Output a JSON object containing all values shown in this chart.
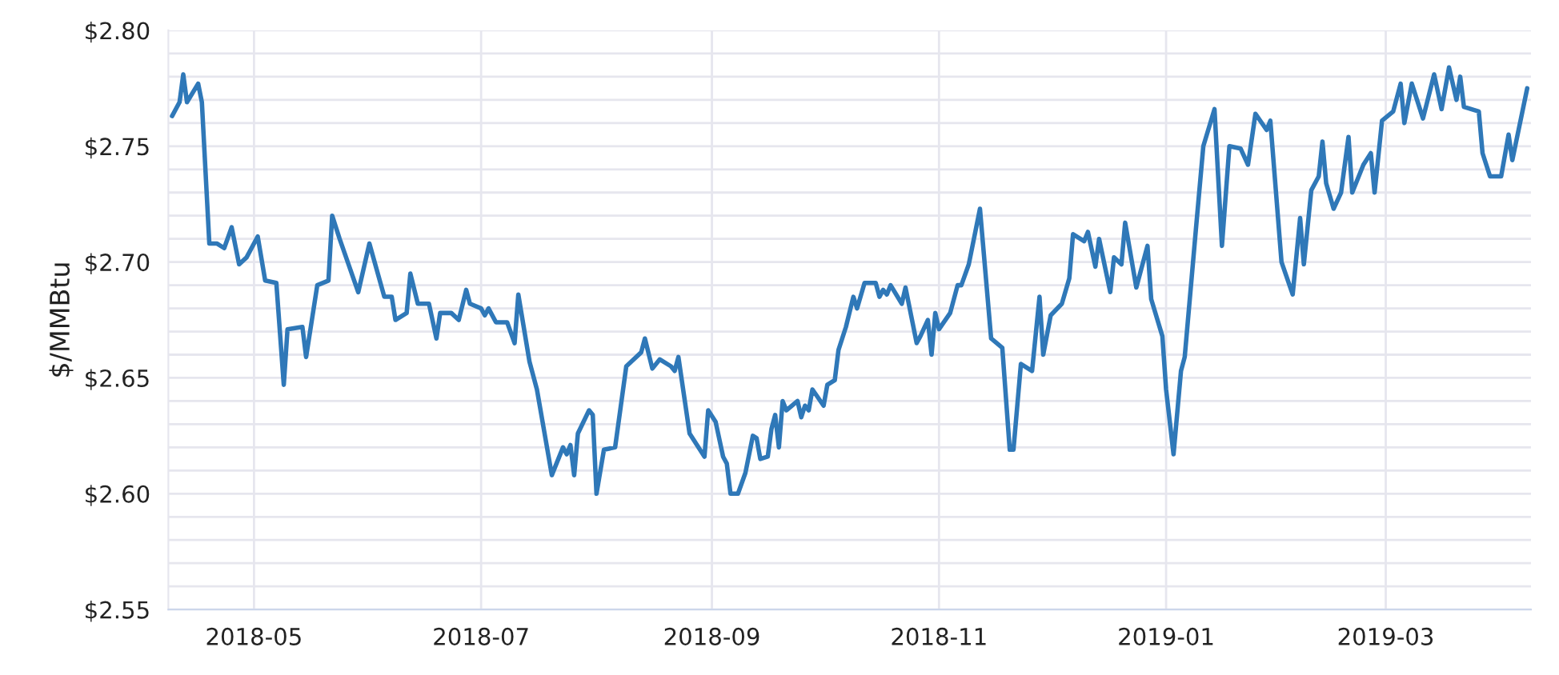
{
  "chart_data": {
    "type": "line",
    "ylabel": "$/MMBtu",
    "x": [
      "2018-04-09",
      "2018-04-11",
      "2018-04-12",
      "2018-04-13",
      "2018-04-16",
      "2018-04-17",
      "2018-04-19",
      "2018-04-21",
      "2018-04-23",
      "2018-04-25",
      "2018-04-27",
      "2018-04-29",
      "2018-05-02",
      "2018-05-04",
      "2018-05-07",
      "2018-05-09",
      "2018-05-10",
      "2018-05-14",
      "2018-05-15",
      "2018-05-18",
      "2018-05-21",
      "2018-05-22",
      "2018-05-24",
      "2018-05-29",
      "2018-06-01",
      "2018-06-05",
      "2018-06-07",
      "2018-06-08",
      "2018-06-11",
      "2018-06-12",
      "2018-06-14",
      "2018-06-17",
      "2018-06-19",
      "2018-06-20",
      "2018-06-23",
      "2018-06-25",
      "2018-06-27",
      "2018-06-28",
      "2018-07-01",
      "2018-07-02",
      "2018-07-03",
      "2018-07-05",
      "2018-07-08",
      "2018-07-10",
      "2018-07-11",
      "2018-07-14",
      "2018-07-16",
      "2018-07-20",
      "2018-07-23",
      "2018-07-24",
      "2018-07-25",
      "2018-07-26",
      "2018-07-27",
      "2018-07-30",
      "2018-07-31",
      "2018-08-01",
      "2018-08-03",
      "2018-08-06",
      "2018-08-09",
      "2018-08-13",
      "2018-08-14",
      "2018-08-16",
      "2018-08-18",
      "2018-08-21",
      "2018-08-22",
      "2018-08-23",
      "2018-08-26",
      "2018-08-28",
      "2018-08-30",
      "2018-08-31",
      "2018-09-02",
      "2018-09-04",
      "2018-09-05",
      "2018-09-06",
      "2018-09-08",
      "2018-09-10",
      "2018-09-12",
      "2018-09-13",
      "2018-09-14",
      "2018-09-16",
      "2018-09-17",
      "2018-09-18",
      "2018-09-19",
      "2018-09-20",
      "2018-09-21",
      "2018-09-24",
      "2018-09-25",
      "2018-09-26",
      "2018-09-27",
      "2018-09-28",
      "2018-10-01",
      "2018-10-02",
      "2018-10-04",
      "2018-10-05",
      "2018-10-07",
      "2018-10-09",
      "2018-10-10",
      "2018-10-12",
      "2018-10-15",
      "2018-10-16",
      "2018-10-17",
      "2018-10-18",
      "2018-10-19",
      "2018-10-22",
      "2018-10-23",
      "2018-10-26",
      "2018-10-27",
      "2018-10-29",
      "2018-10-30",
      "2018-10-31",
      "2018-11-01",
      "2018-11-04",
      "2018-11-06",
      "2018-11-07",
      "2018-11-09",
      "2018-11-12",
      "2018-11-15",
      "2018-11-18",
      "2018-11-20",
      "2018-11-21",
      "2018-11-23",
      "2018-11-26",
      "2018-11-28",
      "2018-11-29",
      "2018-12-01",
      "2018-12-04",
      "2018-12-06",
      "2018-12-07",
      "2018-12-10",
      "2018-12-11",
      "2018-12-13",
      "2018-12-14",
      "2018-12-17",
      "2018-12-18",
      "2018-12-20",
      "2018-12-21",
      "2018-12-24",
      "2018-12-27",
      "2018-12-28",
      "2018-12-31",
      "2019-01-01",
      "2019-01-03",
      "2019-01-05",
      "2019-01-06",
      "2019-01-09",
      "2019-01-11",
      "2019-01-14",
      "2019-01-16",
      "2019-01-18",
      "2019-01-21",
      "2019-01-23",
      "2019-01-25",
      "2019-01-28",
      "2019-01-29",
      "2019-02-01",
      "2019-02-04",
      "2019-02-06",
      "2019-02-07",
      "2019-02-09",
      "2019-02-11",
      "2019-02-12",
      "2019-02-13",
      "2019-02-15",
      "2019-02-17",
      "2019-02-19",
      "2019-02-20",
      "2019-02-23",
      "2019-02-25",
      "2019-02-26",
      "2019-02-28",
      "2019-03-03",
      "2019-03-05",
      "2019-03-06",
      "2019-03-08",
      "2019-03-11",
      "2019-03-14",
      "2019-03-16",
      "2019-03-18",
      "2019-03-20",
      "2019-03-21",
      "2019-03-22",
      "2019-03-26",
      "2019-03-27",
      "2019-03-29",
      "2019-04-01",
      "2019-04-03",
      "2019-04-04",
      "2019-04-08"
    ],
    "series": [
      {
        "color": "#2f78b8",
        "values": [
          2.763,
          2.769,
          2.781,
          2.769,
          2.777,
          2.769,
          2.708,
          2.708,
          2.706,
          2.715,
          2.699,
          2.702,
          2.711,
          2.692,
          2.691,
          2.647,
          2.671,
          2.672,
          2.659,
          2.69,
          2.692,
          2.72,
          2.71,
          2.687,
          2.708,
          2.685,
          2.685,
          2.675,
          2.678,
          2.695,
          2.682,
          2.682,
          2.667,
          2.678,
          2.678,
          2.675,
          2.688,
          2.682,
          2.68,
          2.677,
          2.68,
          2.674,
          2.674,
          2.665,
          2.686,
          2.657,
          2.645,
          2.608,
          2.62,
          2.617,
          2.621,
          2.608,
          2.626,
          2.636,
          2.634,
          2.6,
          2.619,
          2.62,
          2.655,
          2.661,
          2.667,
          2.654,
          2.658,
          2.655,
          2.653,
          2.659,
          2.626,
          2.621,
          2.616,
          2.636,
          2.631,
          2.616,
          2.613,
          2.6,
          2.6,
          2.609,
          2.625,
          2.624,
          2.615,
          2.616,
          2.628,
          2.634,
          2.62,
          2.64,
          2.636,
          2.64,
          2.633,
          2.638,
          2.636,
          2.645,
          2.638,
          2.647,
          2.649,
          2.662,
          2.672,
          2.685,
          2.68,
          2.691,
          2.691,
          2.685,
          2.688,
          2.686,
          2.69,
          2.682,
          2.689,
          2.665,
          2.668,
          2.675,
          2.66,
          2.678,
          2.671,
          2.678,
          2.69,
          2.69,
          2.699,
          2.723,
          2.667,
          2.663,
          2.619,
          2.619,
          2.656,
          2.653,
          2.685,
          2.66,
          2.677,
          2.682,
          2.693,
          2.712,
          2.709,
          2.713,
          2.698,
          2.71,
          2.687,
          2.702,
          2.699,
          2.717,
          2.689,
          2.707,
          2.684,
          2.668,
          2.645,
          2.617,
          2.653,
          2.659,
          2.714,
          2.75,
          2.766,
          2.707,
          2.75,
          2.749,
          2.742,
          2.764,
          2.757,
          2.761,
          2.7,
          2.686,
          2.719,
          2.699,
          2.731,
          2.737,
          2.752,
          2.734,
          2.723,
          2.73,
          2.754,
          2.73,
          2.742,
          2.747,
          2.73,
          2.761,
          2.765,
          2.777,
          2.76,
          2.777,
          2.762,
          2.781,
          2.766,
          2.784,
          2.77,
          2.78,
          2.767,
          2.765,
          2.747,
          2.737,
          2.737,
          2.755,
          2.744,
          2.775
        ]
      }
    ],
    "xlim": [
      "2018-04-08",
      "2019-04-09"
    ],
    "xticks": [
      "2018-05",
      "2018-07",
      "2018-09",
      "2018-11",
      "2019-01",
      "2019-03"
    ],
    "ylim": [
      2.55,
      2.8
    ],
    "yticks": [
      {
        "value": 2.55,
        "label": "$2.55"
      },
      {
        "value": 2.56,
        "label": null
      },
      {
        "value": 2.57,
        "label": null
      },
      {
        "value": 2.58,
        "label": null
      },
      {
        "value": 2.59,
        "label": null
      },
      {
        "value": 2.6,
        "label": "$2.60"
      },
      {
        "value": 2.61,
        "label": null
      },
      {
        "value": 2.62,
        "label": null
      },
      {
        "value": 2.63,
        "label": null
      },
      {
        "value": 2.64,
        "label": null
      },
      {
        "value": 2.65,
        "label": "$2.65"
      },
      {
        "value": 2.66,
        "label": null
      },
      {
        "value": 2.67,
        "label": null
      },
      {
        "value": 2.68,
        "label": null
      },
      {
        "value": 2.69,
        "label": null
      },
      {
        "value": 2.7,
        "label": "$2.70"
      },
      {
        "value": 2.71,
        "label": null
      },
      {
        "value": 2.72,
        "label": null
      },
      {
        "value": 2.73,
        "label": null
      },
      {
        "value": 2.74,
        "label": null
      },
      {
        "value": 2.75,
        "label": "$2.75"
      },
      {
        "value": 2.76,
        "label": null
      },
      {
        "value": 2.77,
        "label": null
      },
      {
        "value": 2.78,
        "label": null
      },
      {
        "value": 2.79,
        "label": null
      },
      {
        "value": 2.8,
        "label": "$2.80"
      }
    ],
    "grid": true,
    "marker": "none",
    "line_style": "solid"
  }
}
